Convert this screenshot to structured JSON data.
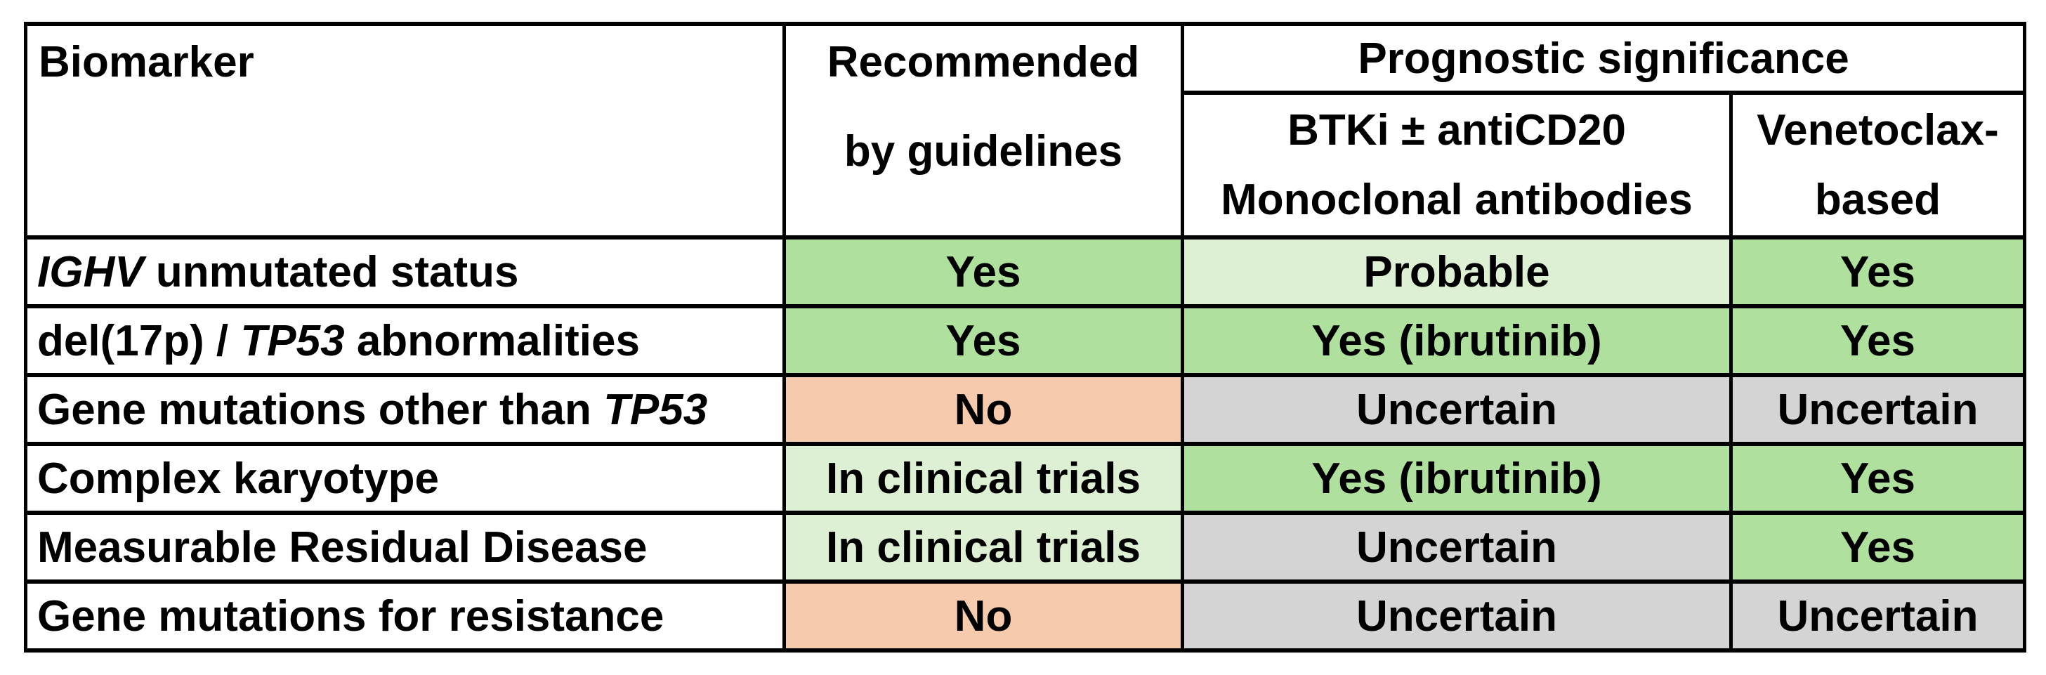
{
  "colors": {
    "green": "#b0e09e",
    "light_green": "#def0d4",
    "orange": "#f6caad",
    "gray": "#d4d4d4",
    "white": "#ffffff",
    "border": "#000000"
  },
  "table": {
    "header": {
      "biomarker": "Biomarker",
      "recommended": [
        "Recommended",
        "by guidelines"
      ],
      "prognostic_significance": "Prognostic significance",
      "btki": [
        "BTKi ± antiCD20",
        "Monoclonal antibodies"
      ],
      "venetoclax": [
        "Venetoclax-",
        "based"
      ]
    },
    "rows": [
      {
        "biomarker": [
          {
            "t": "IGHV",
            "i": true
          },
          {
            "t": " unmutated status",
            "i": false
          }
        ],
        "recommended": {
          "label": "Yes",
          "bg": "green"
        },
        "btki": {
          "label": "Probable",
          "bg": "light_green"
        },
        "venetoclax": {
          "label": "Yes",
          "bg": "green"
        }
      },
      {
        "biomarker": [
          {
            "t": "del(17p) / ",
            "i": false
          },
          {
            "t": "TP53",
            "i": true
          },
          {
            "t": " abnormalities",
            "i": false
          }
        ],
        "recommended": {
          "label": "Yes",
          "bg": "green"
        },
        "btki": {
          "label": "Yes (ibrutinib)",
          "bg": "green"
        },
        "venetoclax": {
          "label": "Yes",
          "bg": "green"
        }
      },
      {
        "biomarker": [
          {
            "t": "Gene mutations other than ",
            "i": false
          },
          {
            "t": "TP53",
            "i": true
          }
        ],
        "recommended": {
          "label": "No",
          "bg": "orange"
        },
        "btki": {
          "label": "Uncertain",
          "bg": "gray"
        },
        "venetoclax": {
          "label": "Uncertain",
          "bg": "gray"
        }
      },
      {
        "biomarker": [
          {
            "t": "Complex karyotype",
            "i": false
          }
        ],
        "recommended": {
          "label": "In clinical trials",
          "bg": "light_green"
        },
        "btki": {
          "label": "Yes (ibrutinib)",
          "bg": "green"
        },
        "venetoclax": {
          "label": "Yes",
          "bg": "green"
        }
      },
      {
        "biomarker": [
          {
            "t": "Measurable Residual Disease",
            "i": false
          }
        ],
        "recommended": {
          "label": "In clinical trials",
          "bg": "light_green"
        },
        "btki": {
          "label": "Uncertain",
          "bg": "gray"
        },
        "venetoclax": {
          "label": "Yes",
          "bg": "green"
        }
      },
      {
        "biomarker": [
          {
            "t": "Gene mutations for resistance",
            "i": false
          }
        ],
        "recommended": {
          "label": "No",
          "bg": "orange"
        },
        "btki": {
          "label": "Uncertain",
          "bg": "gray"
        },
        "venetoclax": {
          "label": "Uncertain",
          "bg": "gray"
        }
      }
    ]
  },
  "chart_data": {
    "type": "table",
    "title": "",
    "columns": [
      "Biomarker",
      "Recommended by guidelines",
      "Prognostic significance — BTKi ± antiCD20 Monoclonal antibodies",
      "Prognostic significance — Venetoclax-based"
    ],
    "rows": [
      [
        "IGHV unmutated status",
        "Yes",
        "Probable",
        "Yes"
      ],
      [
        "del(17p) / TP53 abnormalities",
        "Yes",
        "Yes (ibrutinib)",
        "Yes"
      ],
      [
        "Gene mutations other than TP53",
        "No",
        "Uncertain",
        "Uncertain"
      ],
      [
        "Complex karyotype",
        "In clinical trials",
        "Yes (ibrutinib)",
        "Yes"
      ],
      [
        "Measurable Residual Disease",
        "In clinical trials",
        "Uncertain",
        "Yes"
      ],
      [
        "Gene mutations for resistance",
        "No",
        "Uncertain",
        "Uncertain"
      ]
    ],
    "cell_color_keys": [
      [
        "white",
        "green",
        "light_green",
        "green"
      ],
      [
        "white",
        "green",
        "green",
        "green"
      ],
      [
        "white",
        "orange",
        "gray",
        "gray"
      ],
      [
        "white",
        "light_green",
        "green",
        "green"
      ],
      [
        "white",
        "light_green",
        "gray",
        "green"
      ],
      [
        "white",
        "orange",
        "gray",
        "gray"
      ]
    ],
    "legend_position": "none",
    "grid": true
  }
}
